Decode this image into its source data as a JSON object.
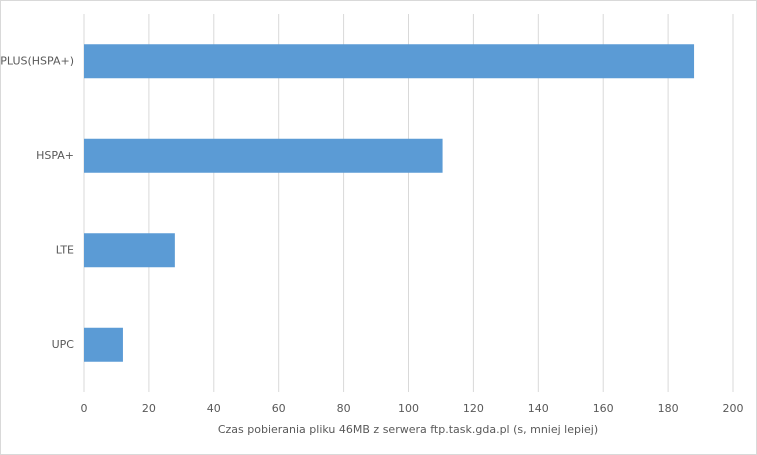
{
  "chart_data": {
    "type": "bar",
    "orientation": "horizontal",
    "categories": [
      "PLUS(HSPA+)",
      "HSPA+",
      "LTE",
      "UPC"
    ],
    "values": [
      188,
      110.5,
      28,
      12
    ],
    "color": "#5b9bd5",
    "xlabel": "Czas pobierania pliku 46MB z serwera ftp.task.gda.pl (s, mniej lepiej)",
    "xlim": [
      0,
      200
    ],
    "xticks": [
      0,
      20,
      40,
      60,
      80,
      100,
      120,
      140,
      160,
      180,
      200
    ],
    "grid": true
  }
}
